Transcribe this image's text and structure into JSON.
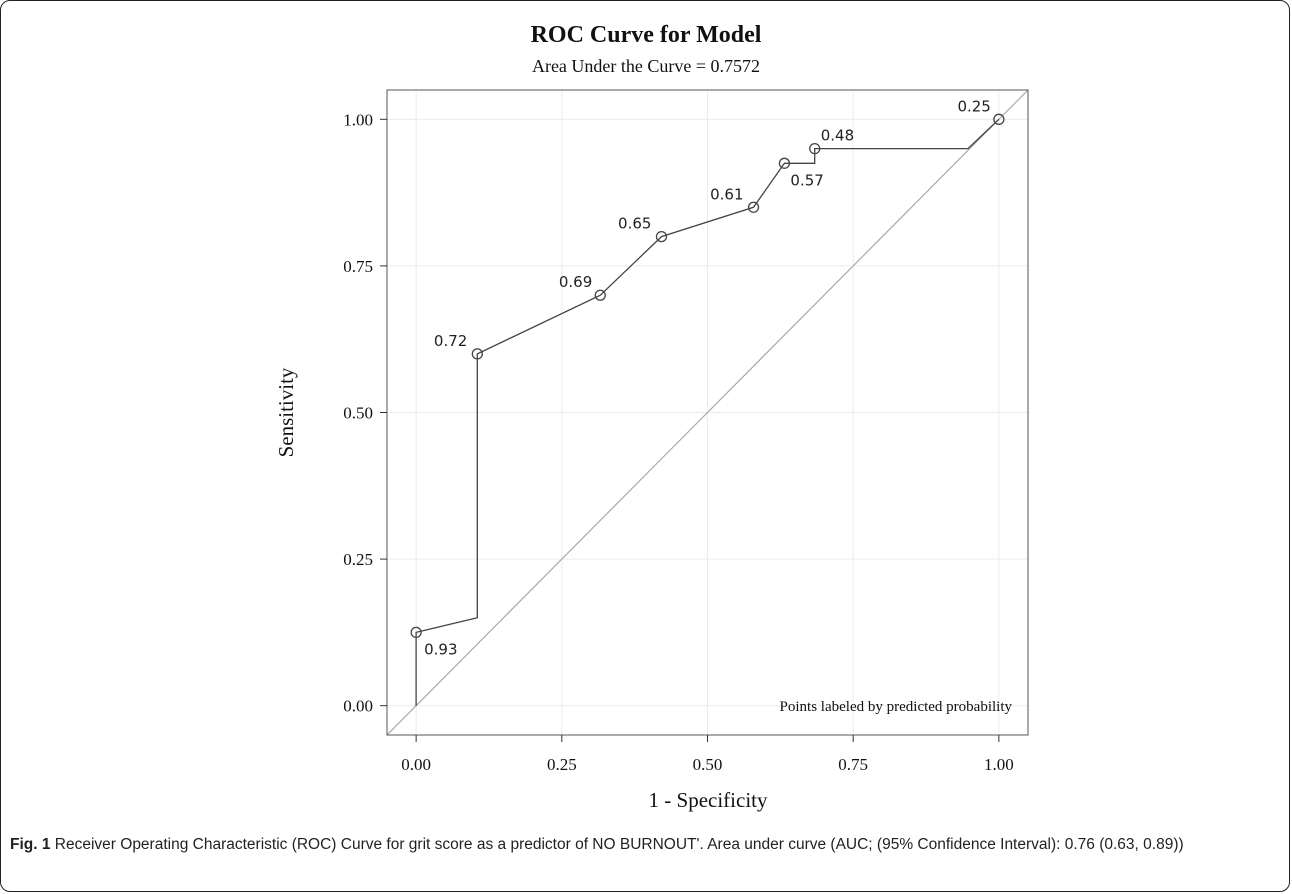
{
  "chart_data": {
    "type": "line",
    "title": "ROC Curve for Model",
    "subtitle": "Area Under the Curve = 0.7572",
    "xlabel": "1 - Specificity",
    "ylabel": "Sensitivity",
    "xlim": [
      -0.05,
      1.05
    ],
    "ylim": [
      -0.05,
      1.05
    ],
    "x_ticks": [
      0,
      0.25,
      0.5,
      0.75,
      1
    ],
    "x_tick_labels": [
      "0.00",
      "0.25",
      "0.50",
      "0.75",
      "1.00"
    ],
    "y_ticks": [
      0,
      0.25,
      0.5,
      0.75,
      1
    ],
    "y_tick_labels": [
      "0.00",
      "0.25",
      "0.50",
      "0.75",
      "1.00"
    ],
    "grid": true,
    "reference_line": [
      [
        0,
        0
      ],
      [
        1,
        1
      ]
    ],
    "curve": [
      [
        0,
        0
      ],
      [
        0,
        0.125
      ],
      [
        0.105,
        0.15
      ],
      [
        0.105,
        0.6
      ],
      [
        0.316,
        0.7
      ],
      [
        0.421,
        0.8
      ],
      [
        0.579,
        0.85
      ],
      [
        0.632,
        0.925
      ],
      [
        0.684,
        0.925
      ],
      [
        0.684,
        0.95
      ],
      [
        0.947,
        0.95
      ],
      [
        1,
        1
      ]
    ],
    "labeled_points": [
      {
        "x": 0,
        "y": 0.125,
        "label": "0.93"
      },
      {
        "x": 0.105,
        "y": 0.6,
        "label": "0.72"
      },
      {
        "x": 0.316,
        "y": 0.7,
        "label": "0.69"
      },
      {
        "x": 0.421,
        "y": 0.8,
        "label": "0.65"
      },
      {
        "x": 0.579,
        "y": 0.85,
        "label": "0.61"
      },
      {
        "x": 0.632,
        "y": 0.925,
        "label": "0.57"
      },
      {
        "x": 0.684,
        "y": 0.95,
        "label": "0.48"
      },
      {
        "x": 1,
        "y": 1,
        "label": "0.25"
      }
    ],
    "annotation": "Points labeled by predicted probability"
  },
  "caption": {
    "figure_label": "Fig. 1",
    "text": " Receiver Operating Characteristic (ROC) Curve for grit score as a predictor of NO BURNOUT'. Area under curve (AUC; (95% Confidence Interval): 0.76 (0.63, 0.89))"
  }
}
